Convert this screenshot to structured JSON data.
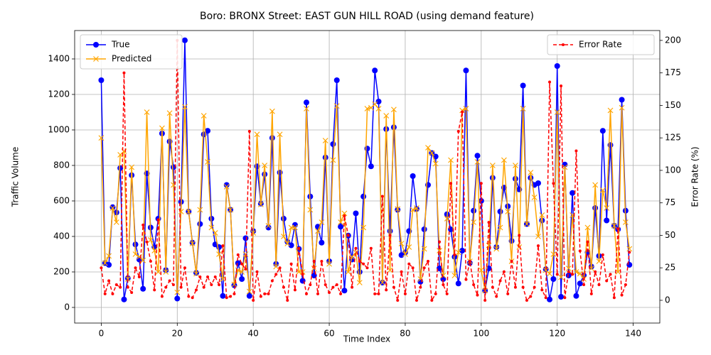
{
  "chart_data": {
    "type": "line",
    "title": "Boro: BRONX Street: EAST GUN HILL ROAD (using demand feature)",
    "x_label": "Time Index",
    "y_label": "Traffic Volume",
    "y2_label": "Error Rate (%)",
    "x": [
      0,
      1,
      2,
      3,
      4,
      5,
      6,
      7,
      8,
      9,
      10,
      11,
      12,
      13,
      14,
      15,
      16,
      17,
      18,
      19,
      20,
      21,
      22,
      23,
      24,
      25,
      26,
      27,
      28,
      29,
      30,
      31,
      32,
      33,
      34,
      35,
      36,
      37,
      38,
      39,
      40,
      41,
      42,
      43,
      44,
      45,
      46,
      47,
      48,
      49,
      50,
      51,
      52,
      53,
      54,
      55,
      56,
      57,
      58,
      59,
      60,
      61,
      62,
      63,
      64,
      65,
      66,
      67,
      68,
      69,
      70,
      71,
      72,
      73,
      74,
      75,
      76,
      77,
      78,
      79,
      80,
      81,
      82,
      83,
      84,
      85,
      86,
      87,
      88,
      89,
      90,
      91,
      92,
      93,
      94,
      95,
      96,
      97,
      98,
      99,
      100,
      101,
      102,
      103,
      104,
      105,
      106,
      107,
      108,
      109,
      110,
      111,
      112,
      113,
      114,
      115,
      116,
      117,
      118,
      119,
      120,
      121,
      122,
      123,
      124,
      125,
      126,
      127,
      128,
      129,
      130,
      131,
      132,
      133,
      134,
      135,
      136,
      137,
      138,
      139
    ],
    "series": [
      {
        "name": "True",
        "color": "#0000ff",
        "marker": "circle",
        "linestyle": "solid",
        "axis": "y",
        "values": [
          1280,
          250,
          240,
          565,
          535,
          785,
          45,
          165,
          745,
          355,
          270,
          105,
          755,
          450,
          340,
          500,
          980,
          210,
          935,
          790,
          50,
          595,
          1505,
          540,
          365,
          195,
          470,
          975,
          995,
          500,
          355,
          340,
          65,
          690,
          550,
          125,
          250,
          160,
          390,
          65,
          430,
          795,
          585,
          750,
          450,
          955,
          245,
          760,
          500,
          370,
          350,
          465,
          330,
          150,
          1155,
          625,
          180,
          455,
          365,
          845,
          260,
          920,
          1280,
          455,
          95,
          405,
          270,
          530,
          200,
          625,
          895,
          795,
          1335,
          1160,
          140,
          1005,
          430,
          1015,
          550,
          295,
          310,
          430,
          740,
          555,
          145,
          440,
          690,
          870,
          850,
          220,
          160,
          525,
          440,
          285,
          135,
          320,
          1335,
          250,
          545,
          855,
          600,
          95,
          220,
          730,
          340,
          540,
          675,
          570,
          375,
          725,
          665,
          1250,
          470,
          730,
          690,
          700,
          490,
          215,
          45,
          160,
          1360,
          60,
          805,
          180,
          645,
          65,
          135,
          180,
          310,
          230,
          560,
          290,
          995,
          490,
          915,
          460,
          440,
          1170,
          545,
          240
        ]
      },
      {
        "name": "Predicted",
        "color": "#ffa500",
        "marker": "cross",
        "linestyle": "solid",
        "axis": "y",
        "values": [
          955,
          250,
          290,
          560,
          480,
          860,
          880,
          160,
          790,
          300,
          285,
          265,
          1100,
          380,
          320,
          200,
          1010,
          200,
          1095,
          690,
          85,
          540,
          1130,
          540,
          360,
          190,
          550,
          1080,
          820,
          450,
          420,
          300,
          160,
          680,
          550,
          130,
          210,
          200,
          300,
          90,
          420,
          975,
          580,
          800,
          460,
          1105,
          230,
          975,
          400,
          360,
          450,
          450,
          200,
          200,
          1120,
          550,
          220,
          430,
          480,
          940,
          245,
          830,
          1135,
          480,
          530,
          200,
          285,
          310,
          140,
          450,
          1120,
          1125,
          1145,
          1120,
          140,
          1080,
          210,
          1115,
          555,
          360,
          300,
          340,
          550,
          560,
          160,
          330,
          900,
          870,
          810,
          320,
          180,
          500,
          830,
          180,
          310,
          1110,
          1120,
          260,
          480,
          820,
          210,
          95,
          350,
          800,
          330,
          450,
          830,
          540,
          260,
          800,
          340,
          1120,
          470,
          760,
          620,
          400,
          520,
          210,
          190,
          300,
          1100,
          170,
          790,
          220,
          520,
          200,
          190,
          160,
          450,
          220,
          690,
          260,
          660,
          560,
          1110,
          460,
          200,
          1125,
          480,
          330
        ]
      },
      {
        "name": "Error Rate",
        "color": "#ff0000",
        "marker": "dot",
        "linestyle": "dashed",
        "axis": "y2",
        "values": [
          25,
          5,
          15,
          5,
          12,
          10,
          175,
          10,
          6,
          25,
          18,
          58,
          45,
          30,
          8,
          62,
          3,
          10,
          15,
          12,
          200,
          10,
          25,
          3,
          2,
          8,
          18,
          10,
          18,
          12,
          18,
          12,
          42,
          2,
          3,
          5,
          35,
          28,
          24,
          130,
          0,
          22,
          3,
          5,
          5,
          15,
          20,
          25,
          10,
          0,
          28,
          8,
          40,
          20,
          5,
          12,
          30,
          5,
          30,
          12,
          6,
          10,
          12,
          5,
          65,
          50,
          10,
          40,
          30,
          28,
          25,
          40,
          5,
          5,
          80,
          8,
          50,
          10,
          0,
          22,
          5,
          28,
          25,
          0,
          10,
          25,
          30,
          0,
          5,
          45,
          12,
          5,
          90,
          35,
          130,
          145,
          16,
          30,
          12,
          4,
          90,
          0,
          60,
          10,
          3,
          15,
          22,
          5,
          30,
          10,
          50,
          10,
          0,
          3,
          10,
          42,
          8,
          2,
          168,
          90,
          20,
          165,
          2,
          22,
          20,
          115,
          38,
          12,
          45,
          5,
          22,
          12,
          35,
          15,
          20,
          2,
          55,
          4,
          12,
          37
        ]
      }
    ],
    "xlim": [
      -7,
      147
    ],
    "xticks": [
      0,
      20,
      40,
      60,
      80,
      100,
      120,
      140
    ],
    "ylim": [
      -88,
      1560
    ],
    "yticks": [
      0,
      200,
      400,
      600,
      800,
      1000,
      1200,
      1400
    ],
    "y2lim": [
      -17.5,
      207.6
    ],
    "y2ticks": [
      0,
      25,
      50,
      75,
      100,
      125,
      150,
      175,
      200
    ],
    "grid": true,
    "legend": "upper left",
    "legend2": "upper right"
  }
}
